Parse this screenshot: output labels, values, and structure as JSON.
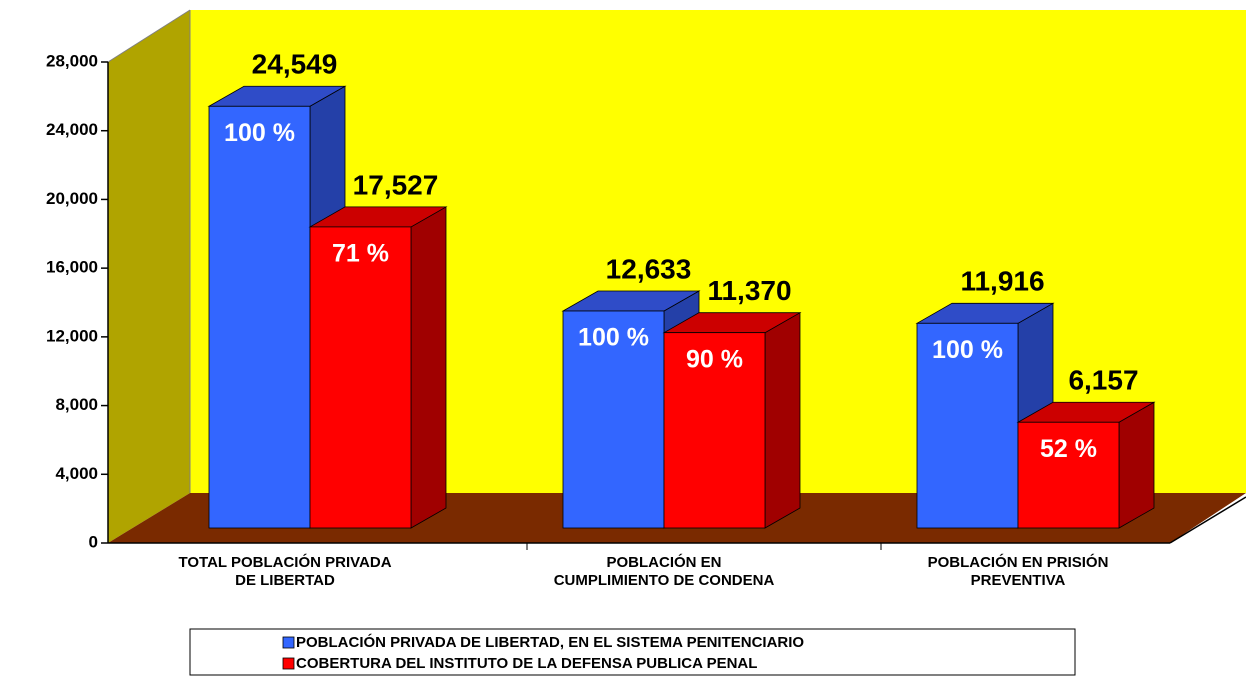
{
  "chart_data": {
    "type": "bar3d",
    "categories": [
      [
        "TOTAL POBLACIÓN PRIVADA",
        "DE LIBERTAD"
      ],
      [
        "POBLACIÓN EN",
        "CUMPLIMIENTO DE CONDENA"
      ],
      [
        "POBLACIÓN EN PRISIÓN",
        "PREVENTIVA"
      ]
    ],
    "series": [
      {
        "name": "POBLACIÓN PRIVADA DE LIBERTAD, EN EL SISTEMA PENITENCIARIO",
        "color": "#3366ff",
        "top_color": "#2f4cc8",
        "side_color": "#2440a8",
        "values": [
          24549,
          12633,
          11916
        ],
        "value_labels": [
          "24,549",
          "12,633",
          "11,916"
        ],
        "percent_labels": [
          "100 %",
          "100 %",
          "100 %"
        ]
      },
      {
        "name": "COBERTURA DEL INSTITUTO DE LA DEFENSA PUBLICA PENAL",
        "color": "#ff0000",
        "top_color": "#cc0000",
        "side_color": "#a00000",
        "values": [
          17527,
          11370,
          6157
        ],
        "value_labels": [
          "17,527",
          "11,370",
          "6,157"
        ],
        "percent_labels": [
          "71 %",
          "90 %",
          "52 %"
        ]
      }
    ],
    "ylim": [
      0,
      28000
    ],
    "yticks": [
      0,
      {
        "value": 4000,
        "label": "4,000"
      },
      {
        "value": 8000,
        "label": "8,000"
      },
      {
        "value": 12000,
        "label": "12,000"
      },
      {
        "value": 16000,
        "label": "16,000"
      },
      {
        "value": 20000,
        "label": "20,000"
      },
      {
        "value": 24000,
        "label": "24,000"
      },
      {
        "value": 28000,
        "label": "28,000"
      }
    ],
    "wall_color": "#ffff00",
    "side_wall_color": "#b0a400",
    "floor_color": "#7a2a00"
  }
}
